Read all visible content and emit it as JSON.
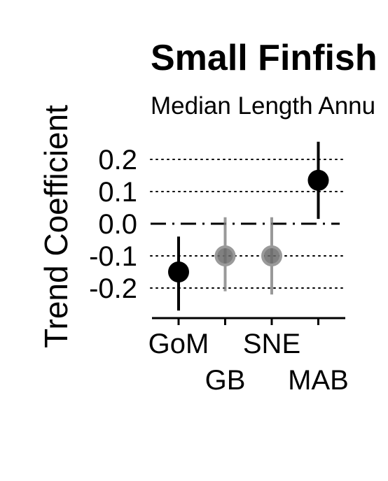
{
  "chart_data": {
    "type": "scatter",
    "title": "Small Finfish",
    "subtitle": "Median Length Annu",
    "ylabel": "Trend Coefficient",
    "xlabel": "",
    "categories": [
      "GoM",
      "GB",
      "SNE",
      "MAB"
    ],
    "ylim": [
      -0.29,
      0.2
    ],
    "yticks": [
      "0.2",
      "0.1",
      "0.0",
      "-0.1",
      "-0.2"
    ],
    "ytick_values": [
      0.2,
      0.1,
      0.0,
      -0.1,
      -0.2
    ],
    "grid": "dotted horizontal",
    "reference_line": 0.0,
    "points": [
      {
        "category": "GoM",
        "value": -0.15,
        "lower": -0.27,
        "upper": -0.04,
        "significant": true
      },
      {
        "category": "GB",
        "value": -0.1,
        "lower": -0.21,
        "upper": 0.02,
        "significant": false
      },
      {
        "category": "SNE",
        "value": -0.1,
        "lower": -0.22,
        "upper": 0.02,
        "significant": false
      },
      {
        "category": "MAB",
        "value": 0.135,
        "lower": 0.015,
        "upper": 0.255,
        "significant": true
      }
    ],
    "colors": {
      "significant": "#000000",
      "not_significant": "#7f7f7f"
    }
  }
}
